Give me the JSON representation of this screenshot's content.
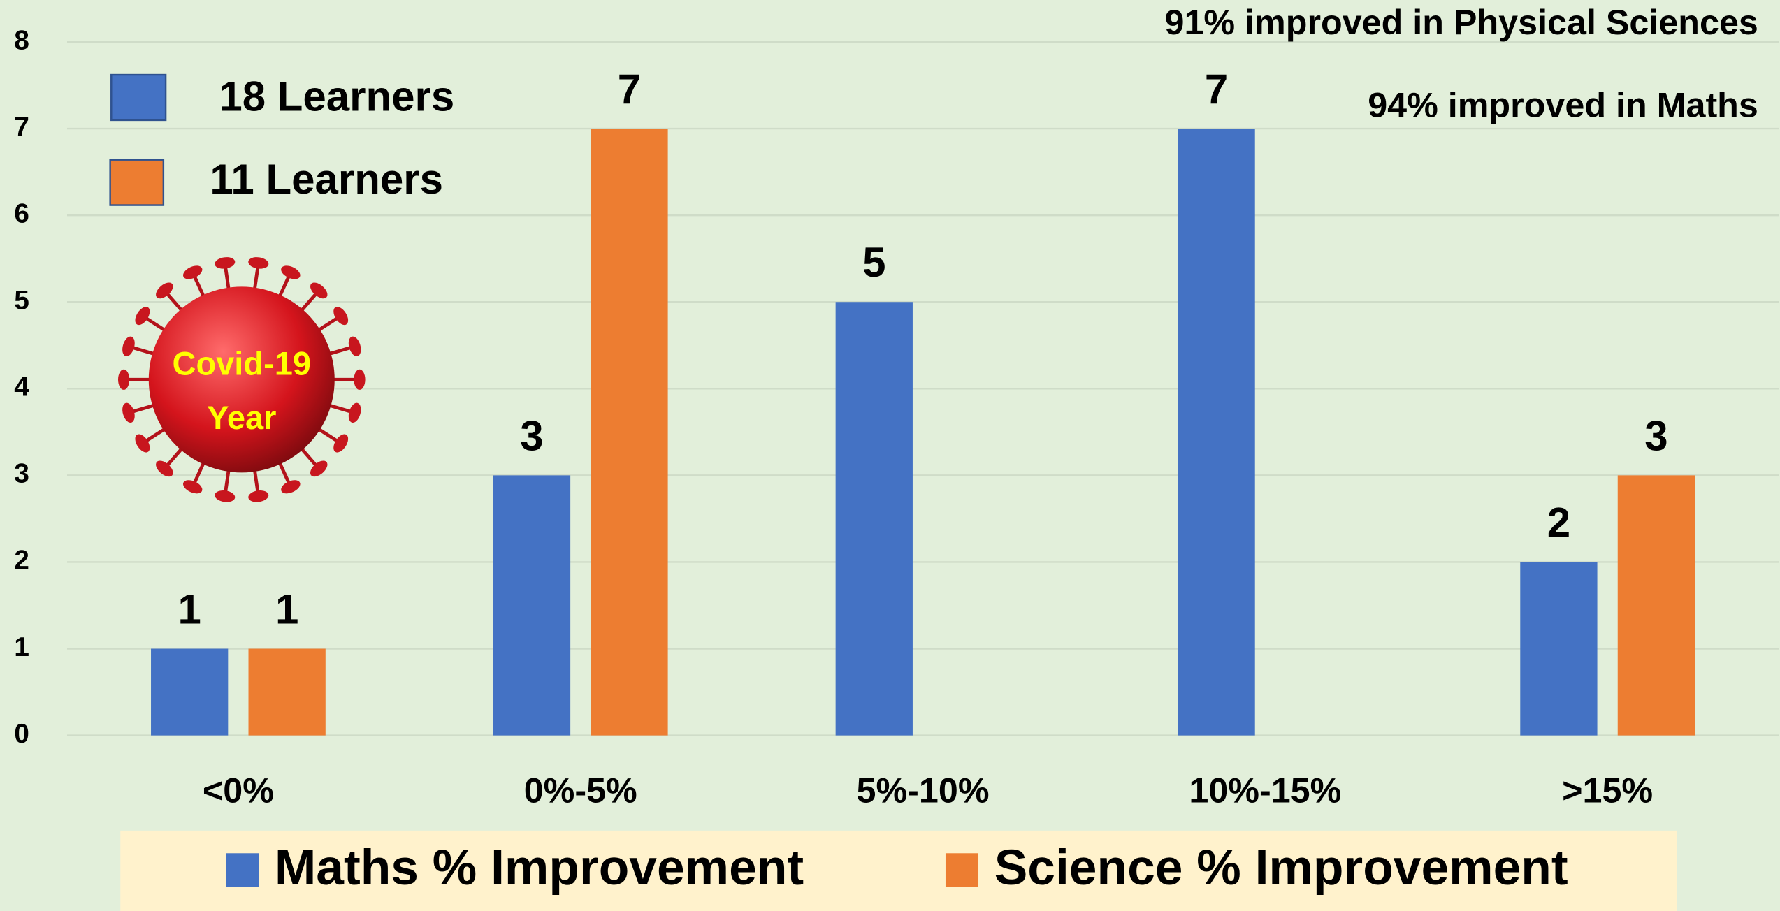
{
  "chart_data": {
    "type": "bar",
    "categories": [
      "<0%",
      "0%-5%",
      "5%-10%",
      "10%-15%",
      ">15%"
    ],
    "series": [
      {
        "name": "Maths % Improvement",
        "color": "#4472c4",
        "values": [
          1,
          3,
          5,
          7,
          2
        ]
      },
      {
        "name": "Science % Improvement",
        "color": "#ed7d31",
        "values": [
          1,
          7,
          null,
          null,
          3
        ]
      }
    ],
    "ylim": [
      0,
      8
    ],
    "yticks": [
      0,
      1,
      2,
      3,
      4,
      5,
      6,
      7,
      8
    ],
    "grid": true,
    "legend": "bottom",
    "annotations": [
      "91% improved in Physical Sciences",
      "94% improved in Maths",
      "18 Learners",
      "11 Learners",
      "Covid-19",
      "Year"
    ]
  }
}
